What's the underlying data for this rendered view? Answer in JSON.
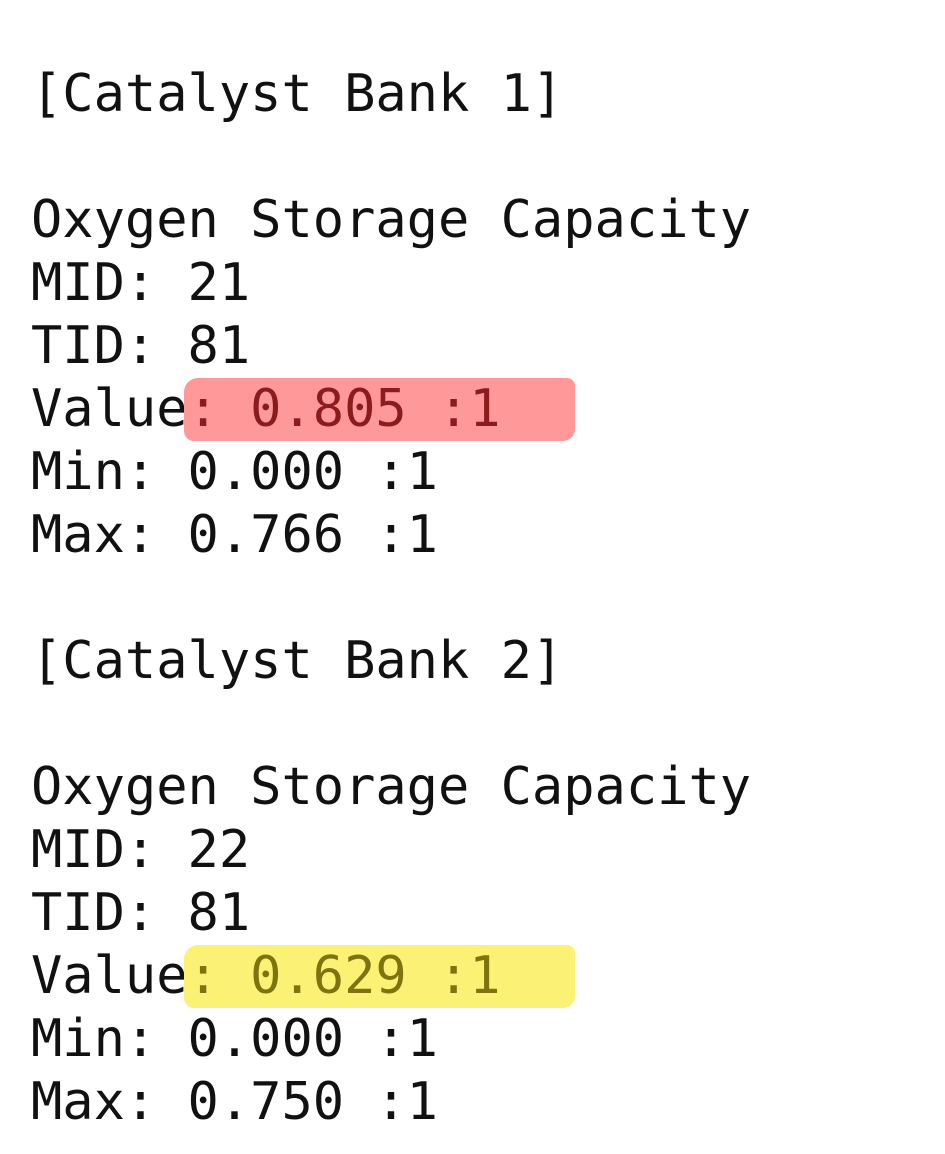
{
  "banks": [
    {
      "header": "[Catalyst Bank 1]",
      "title": "Oxygen Storage Capacity",
      "mid": "MID: 21",
      "tid": "TID: 81",
      "value_label": "Value",
      "value": ": 0.805 :1",
      "min": "Min: 0.000 :1",
      "max": "Max: 0.766 :1",
      "highlight_color": "#ff9898"
    },
    {
      "header": "[Catalyst Bank 2]",
      "title": "Oxygen Storage Capacity",
      "mid": "MID: 22",
      "tid": "TID: 81",
      "value_label": "Value",
      "value": ": 0.629 :1",
      "min": "Min: 0.000 :1",
      "max": "Max: 0.750 :1",
      "highlight_color": "#fbf275"
    }
  ]
}
